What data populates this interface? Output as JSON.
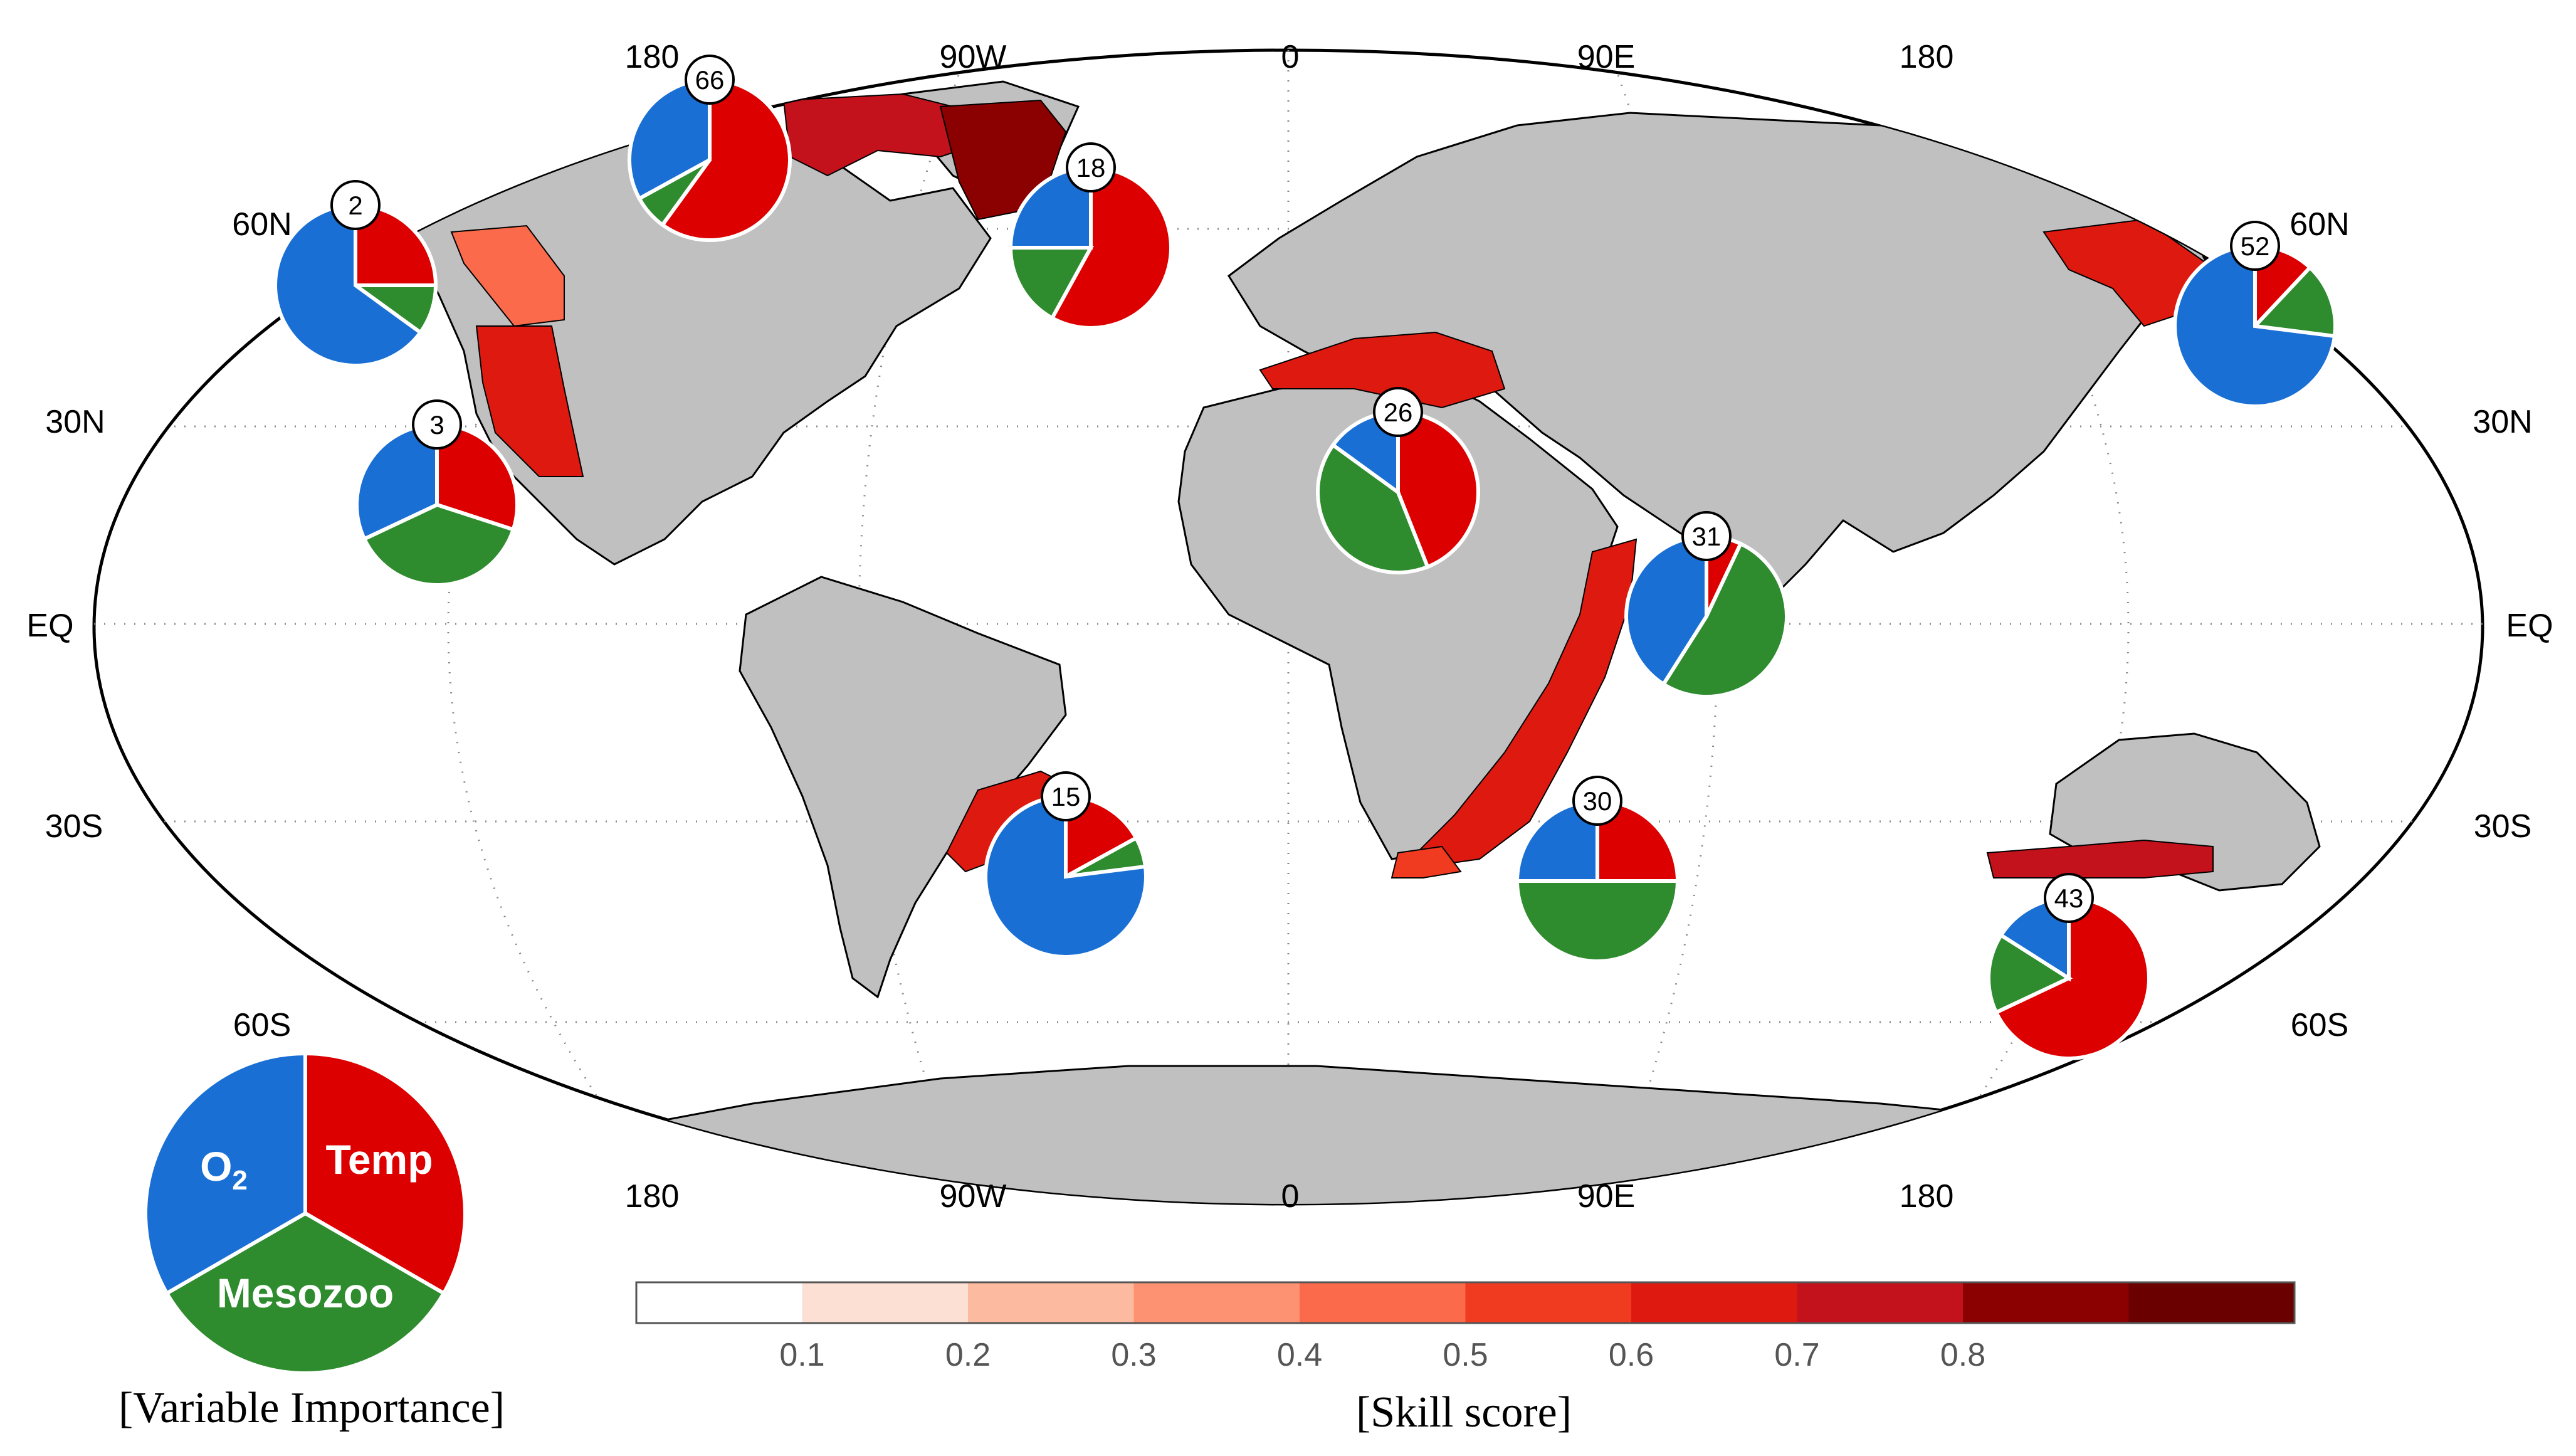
{
  "map": {
    "top_lon_labels": [
      "180",
      "90W",
      "0",
      "90E",
      "180"
    ],
    "bottom_lon_labels": [
      "180",
      "90W",
      "0",
      "90E",
      "180"
    ],
    "lat_labels_left": [
      "60N",
      "30N",
      "EQ",
      "30S",
      "60S"
    ],
    "lat_labels_right": [
      "60N",
      "30N",
      "EQ",
      "30S",
      "60S"
    ],
    "land_color": "#c0c0c0",
    "ocean_color": "#ffffff"
  },
  "regions": [
    {
      "id": "66",
      "skill_score": 0.75
    },
    {
      "id": "18",
      "skill_score": 0.85
    },
    {
      "id": "2",
      "skill_score": 0.45
    },
    {
      "id": "3",
      "skill_score": 0.6
    },
    {
      "id": "52",
      "skill_score": 0.6
    },
    {
      "id": "26",
      "skill_score": 0.6
    },
    {
      "id": "31",
      "skill_score": 0.6
    },
    {
      "id": "15",
      "skill_score": 0.65
    },
    {
      "id": "30",
      "skill_score": 0.55
    },
    {
      "id": "43",
      "skill_score": 0.75
    }
  ],
  "pies": [
    {
      "label": "66",
      "temp": 0.6,
      "mesozoo": 0.07,
      "o2": 0.33
    },
    {
      "label": "18",
      "temp": 0.58,
      "mesozoo": 0.17,
      "o2": 0.25
    },
    {
      "label": "2",
      "temp": 0.25,
      "mesozoo": 0.1,
      "o2": 0.65
    },
    {
      "label": "3",
      "temp": 0.3,
      "mesozoo": 0.38,
      "o2": 0.32
    },
    {
      "label": "52",
      "temp": 0.12,
      "mesozoo": 0.15,
      "o2": 0.73
    },
    {
      "label": "26",
      "temp": 0.44,
      "mesozoo": 0.41,
      "o2": 0.15
    },
    {
      "label": "31",
      "temp": 0.07,
      "mesozoo": 0.52,
      "o2": 0.41
    },
    {
      "label": "15",
      "temp": 0.17,
      "mesozoo": 0.06,
      "o2": 0.77
    },
    {
      "label": "30",
      "temp": 0.25,
      "mesozoo": 0.5,
      "o2": 0.25
    },
    {
      "label": "43",
      "temp": 0.68,
      "mesozoo": 0.16,
      "o2": 0.16
    }
  ],
  "legend": {
    "o2_label": "O",
    "o2_subscript": "2",
    "temp_label": "Temp",
    "mesozoo_label": "Mesozoo",
    "caption": "[Variable Importance]",
    "temp_color": "#dd0000",
    "mesozoo_color": "#2e8b2e",
    "o2_color": "#1a6fd4"
  },
  "colorbar": {
    "tick_labels": [
      "0.1",
      "0.2",
      "0.3",
      "0.4",
      "0.5",
      "0.6",
      "0.7",
      "0.8"
    ],
    "caption": "[Skill score]",
    "colors": [
      "#ffffff",
      "#fde0d4",
      "#fcbba0",
      "#fc9272",
      "#fb6a4a",
      "#f03b20",
      "#de1a10",
      "#c3121b",
      "#8b0000",
      "#6b0000"
    ]
  }
}
